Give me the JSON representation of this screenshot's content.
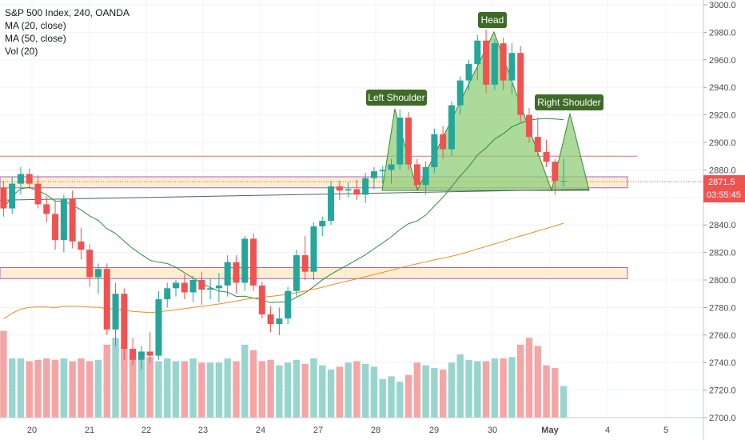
{
  "legend": {
    "title": "S&P 500 Index, 240, OANDA",
    "indicators": [
      "MA (20, close)",
      "MA (50, close)",
      "Vol (20)"
    ]
  },
  "colors": {
    "up": "#26a69a",
    "down": "#ef5350",
    "ma20": "#2e8b3e",
    "ma50": "#f28c1c",
    "pattern_fill": "#8fce7a",
    "pattern_stroke": "#3c8a2e",
    "bubble": "#3e6b26",
    "hline": "#e86b6b",
    "zone_fill": "#fdeecf",
    "zone_stroke": "#a066c4",
    "price_tag": "#ef5350"
  },
  "chart_data": {
    "type": "candlestick",
    "y_axis": {
      "min": 2700,
      "max": 3000,
      "ticks": [
        2700,
        2720,
        2740,
        2760,
        2780,
        2800,
        2820,
        2840,
        2860,
        2880,
        2900,
        2920,
        2940,
        2960,
        2980,
        3000
      ]
    },
    "x_axis": {
      "labels": [
        "20",
        "21",
        "22",
        "23",
        "24",
        "27",
        "28",
        "29",
        "30",
        "May",
        "4",
        "5"
      ]
    },
    "candles": [
      [
        2867,
        2872,
        2846,
        2852
      ],
      [
        2852,
        2875,
        2848,
        2870
      ],
      [
        2870,
        2882,
        2862,
        2877
      ],
      [
        2877,
        2881,
        2866,
        2870
      ],
      [
        2870,
        2876,
        2852,
        2855
      ],
      [
        2855,
        2861,
        2842,
        2848
      ],
      [
        2848,
        2858,
        2822,
        2829
      ],
      [
        2829,
        2862,
        2820,
        2859
      ],
      [
        2859,
        2865,
        2823,
        2828
      ],
      [
        2828,
        2838,
        2815,
        2822
      ],
      [
        2822,
        2826,
        2795,
        2802
      ],
      [
        2802,
        2812,
        2790,
        2808
      ],
      [
        2808,
        2812,
        2760,
        2764
      ],
      [
        2764,
        2798,
        2752,
        2790
      ],
      [
        2790,
        2794,
        2742,
        2750
      ],
      [
        2750,
        2758,
        2738,
        2742
      ],
      [
        2742,
        2752,
        2735,
        2748
      ],
      [
        2748,
        2762,
        2740,
        2745
      ],
      [
        2745,
        2792,
        2742,
        2786
      ],
      [
        2786,
        2798,
        2780,
        2794
      ],
      [
        2794,
        2800,
        2788,
        2798
      ],
      [
        2798,
        2804,
        2786,
        2791
      ],
      [
        2791,
        2803,
        2784,
        2800
      ],
      [
        2800,
        2806,
        2782,
        2793
      ],
      [
        2793,
        2801,
        2786,
        2794
      ],
      [
        2794,
        2805,
        2784,
        2796
      ],
      [
        2796,
        2818,
        2788,
        2813
      ],
      [
        2813,
        2818,
        2790,
        2798
      ],
      [
        2798,
        2832,
        2792,
        2830
      ],
      [
        2830,
        2834,
        2792,
        2796
      ],
      [
        2796,
        2799,
        2772,
        2775
      ],
      [
        2775,
        2781,
        2762,
        2768
      ],
      [
        2768,
        2780,
        2760,
        2772
      ],
      [
        2772,
        2795,
        2768,
        2792
      ],
      [
        2792,
        2822,
        2788,
        2818
      ],
      [
        2818,
        2832,
        2800,
        2806
      ],
      [
        2806,
        2842,
        2800,
        2839
      ],
      [
        2839,
        2846,
        2832,
        2843
      ],
      [
        2843,
        2872,
        2840,
        2868
      ],
      [
        2868,
        2872,
        2858,
        2865
      ],
      [
        2865,
        2871,
        2860,
        2866
      ],
      [
        2866,
        2873,
        2858,
        2862
      ],
      [
        2862,
        2878,
        2856,
        2874
      ],
      [
        2874,
        2882,
        2866,
        2879
      ],
      [
        2879,
        2883,
        2870,
        2880
      ],
      [
        2880,
        2888,
        2870,
        2884
      ],
      [
        2884,
        2924,
        2880,
        2918
      ],
      [
        2918,
        2922,
        2880,
        2884
      ],
      [
        2884,
        2888,
        2865,
        2869
      ],
      [
        2869,
        2886,
        2862,
        2882
      ],
      [
        2882,
        2910,
        2878,
        2906
      ],
      [
        2906,
        2912,
        2888,
        2895
      ],
      [
        2895,
        2930,
        2890,
        2927
      ],
      [
        2927,
        2948,
        2920,
        2945
      ],
      [
        2945,
        2960,
        2938,
        2957
      ],
      [
        2957,
        2978,
        2945,
        2974
      ],
      [
        2974,
        2982,
        2936,
        2942
      ],
      [
        2942,
        2975,
        2938,
        2972
      ],
      [
        2972,
        2976,
        2938,
        2945
      ],
      [
        2945,
        2972,
        2935,
        2965
      ],
      [
        2965,
        2970,
        2915,
        2920
      ],
      [
        2920,
        2925,
        2900,
        2904
      ],
      [
        2904,
        2918,
        2890,
        2893
      ],
      [
        2893,
        2902,
        2882,
        2886
      ],
      [
        2886,
        2888,
        2862,
        2872
      ],
      [
        2872,
        2888,
        2868,
        2872
      ]
    ],
    "volume": [
      2763,
      2743,
      2743,
      2741,
      2742,
      2743,
      2742,
      2743,
      2741,
      2743,
      2741,
      2742,
      2753,
      2758,
      2753,
      2748,
      2742,
      2744,
      2741,
      2743,
      2741,
      2741,
      2743,
      2740,
      2740,
      2740,
      2743,
      2741,
      2753,
      2749,
      2741,
      2742,
      2738,
      2740,
      2742,
      2739,
      2743,
      2738,
      2735,
      2737,
      2740,
      2741,
      2739,
      2737,
      2728,
      2730,
      2726,
      2731,
      2740,
      2738,
      2736,
      2735,
      2740,
      2746,
      2742,
      2741,
      2741,
      2743,
      2743,
      2744,
      2753,
      2758,
      2752,
      2738,
      2736,
      2723
    ],
    "horizontal_lines": [
      2890
    ],
    "zones": [
      [
        2867,
        2875
      ],
      [
        2801,
        2809
      ]
    ],
    "neckline": [
      [
        0,
        2858
      ],
      [
        60,
        2866
      ]
    ],
    "pattern_labels": [
      "Left Shoulder",
      "Head",
      "Right Shoulder"
    ],
    "last_price": "2871.5",
    "countdown": "03:55:45"
  }
}
